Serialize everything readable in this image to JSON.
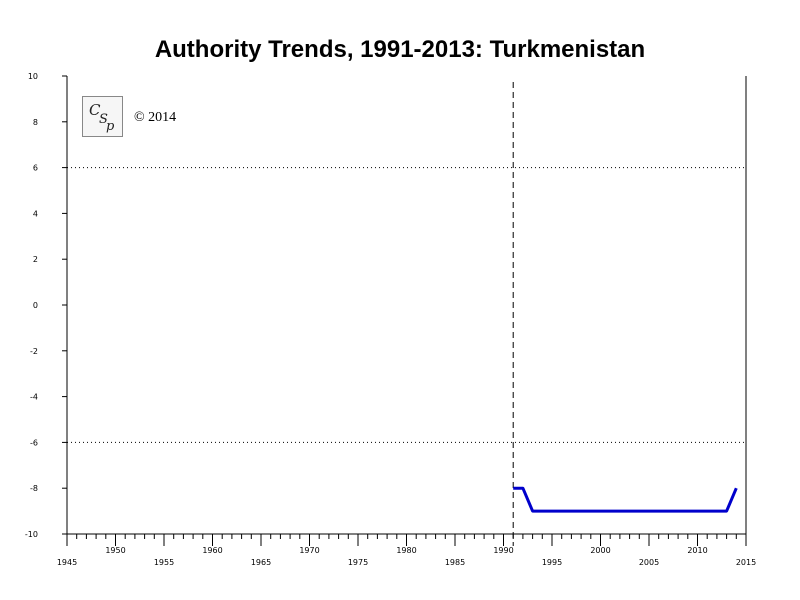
{
  "chart_data": {
    "type": "line",
    "title": "Authority Trends, 1991-2013: Turkmenistan",
    "xlim": [
      1945,
      2015
    ],
    "ylim": [
      -10,
      10
    ],
    "x_ticks_major": [
      1945,
      1950,
      1955,
      1960,
      1965,
      1970,
      1975,
      1980,
      1985,
      1990,
      1995,
      2000,
      2005,
      2010,
      2015
    ],
    "y_ticks": [
      10,
      8,
      6,
      4,
      2,
      0,
      -2,
      -4,
      -6,
      -8,
      -10
    ],
    "reference_lines_y": [
      6,
      -6
    ],
    "event_lines_x": [
      1991
    ],
    "series": [
      {
        "color": "#0000cc",
        "x": [
          1991,
          1992,
          1993,
          1994,
          1995,
          1996,
          1997,
          1998,
          1999,
          2000,
          2001,
          2002,
          2003,
          2004,
          2005,
          2006,
          2007,
          2008,
          2009,
          2010,
          2011,
          2012,
          2013,
          2014
        ],
        "y": [
          -8,
          -8,
          -9,
          -9,
          -9,
          -9,
          -9,
          -9,
          -9,
          -9,
          -9,
          -9,
          -9,
          -9,
          -9,
          -9,
          -9,
          -9,
          -9,
          -9,
          -9,
          -9,
          -9,
          -8
        ]
      }
    ]
  },
  "copyright": "© 2014",
  "logo": {
    "text": "CSP",
    "icon": "csp-logo-icon"
  }
}
